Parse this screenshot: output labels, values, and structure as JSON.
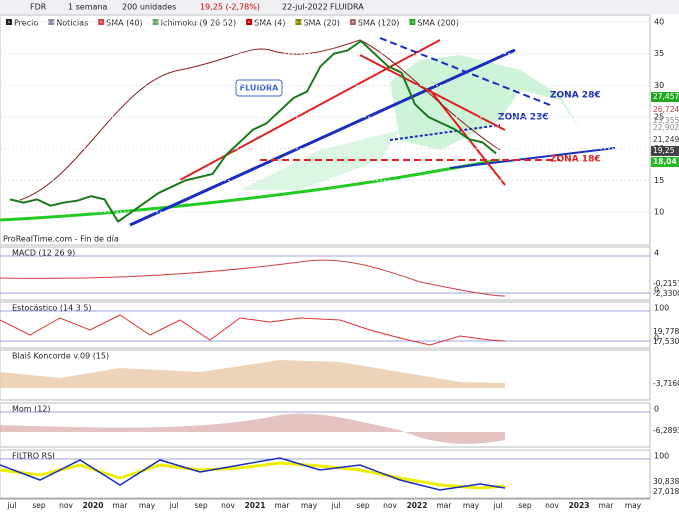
{
  "toolbar": {
    "symbol": "FDR",
    "period": "1 semana",
    "units": "200 unidades",
    "quote": "19,25 (-2,78%)",
    "date": "22-jul-2022",
    "name": "FLUIDRA"
  },
  "legend": [
    "Precio",
    "Noticias",
    "SMA (40)",
    "Ichimoku (9 26 52)",
    "SMA (4)",
    "SMA (20)",
    "SMA (120)",
    "SMA (200)"
  ],
  "chart_data": {
    "type": "line",
    "series": [
      {
        "name": "FDR",
        "color": "#1a7a1a",
        "values": [
          12,
          11.5,
          12,
          11,
          11.5,
          11.8,
          12.5,
          12,
          8.5,
          10,
          11.5,
          13,
          14,
          15,
          15.5,
          16,
          19,
          21,
          23,
          24,
          26,
          28,
          29,
          33,
          35,
          35.5,
          37,
          35,
          33,
          32,
          27,
          25,
          24,
          23,
          21.5,
          21,
          19.25
        ]
      }
    ],
    "ylim": [
      4.8,
      41.1
    ],
    "yticks": [
      10,
      15,
      20,
      25,
      30,
      35,
      40
    ],
    "grid": true
  },
  "price_labels": [
    {
      "text": "27,457",
      "color": "#22aa22"
    },
    {
      "text": "26,724",
      "color": "#c04040"
    },
    {
      "text": "23,355",
      "color": "#888"
    },
    {
      "text": "22,902",
      "color": "#888"
    },
    {
      "text": "21,249",
      "color": "#333"
    },
    {
      "text": "19,25",
      "color": "#444"
    },
    {
      "text": "18,04",
      "color": "#22bb22"
    }
  ],
  "annotations": {
    "name": "FLUIDRA",
    "zone28": "ZONA 28€",
    "zone23": "ZONA 23€",
    "zone18": "ZONA 18€",
    "source": "ProRealTime.com - Fin de día"
  },
  "panels": [
    {
      "title": "MACD (12 26 9)",
      "ticks": [
        "4",
        "0"
      ],
      "labels": [
        "-0,2157",
        "-2,3300"
      ]
    },
    {
      "title": "Estocástico (14 3 5)",
      "ticks": [
        "100",
        "0"
      ],
      "labels": [
        "19,778",
        "17,530"
      ]
    },
    {
      "title": "Blaiš Koncorde v.09 (15)",
      "ticks": [],
      "labels": [
        "-3,7160"
      ]
    },
    {
      "title": "Mom (12)",
      "ticks": [
        "0"
      ],
      "labels": [
        "-6,2893"
      ]
    },
    {
      "title": "FILTRO RSI",
      "ticks": [
        "100"
      ],
      "labels": [
        "30,838",
        "27,018"
      ]
    }
  ],
  "xaxis": [
    "jul",
    "sep",
    "nov",
    "2020",
    "mar",
    "may",
    "jul",
    "sep",
    "nov",
    "2021",
    "mar",
    "may",
    "jul",
    "sep",
    "nov",
    "2022",
    "mar",
    "may",
    "jul",
    "sep",
    "nov",
    "2023",
    "mar",
    "may"
  ]
}
